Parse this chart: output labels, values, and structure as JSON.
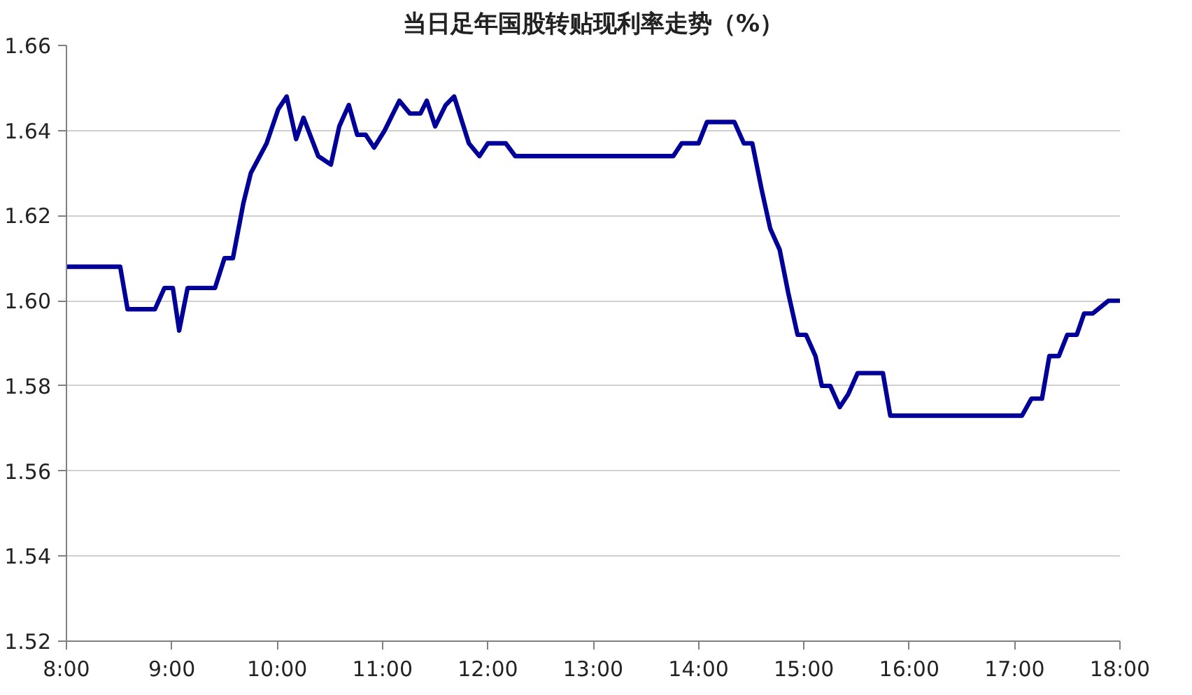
{
  "chart_data": {
    "type": "line",
    "title": "当日足年国股转贴现利率走势（%）",
    "x": [
      8.0,
      8.51,
      8.58,
      8.84,
      8.93,
      9.01,
      9.07,
      9.15,
      9.41,
      9.5,
      9.58,
      9.68,
      9.75,
      9.9,
      10.01,
      10.09,
      10.18,
      10.25,
      10.39,
      10.51,
      10.59,
      10.68,
      10.76,
      10.84,
      10.92,
      11.02,
      11.16,
      11.26,
      11.36,
      11.42,
      11.5,
      11.6,
      11.68,
      11.82,
      11.92,
      12.0,
      12.17,
      12.26,
      13.76,
      13.84,
      14.0,
      14.08,
      14.34,
      14.43,
      14.51,
      14.6,
      14.68,
      14.77,
      14.85,
      14.94,
      15.02,
      15.11,
      15.17,
      15.25,
      15.34,
      15.42,
      15.51,
      15.75,
      15.82,
      17.07,
      17.16,
      17.26,
      17.33,
      17.42,
      17.5,
      17.59,
      17.66,
      17.74,
      17.89,
      18.0
    ],
    "series": [
      {
        "color": "#000099",
        "values": [
          1.608,
          1.608,
          1.598,
          1.598,
          1.603,
          1.603,
          1.593,
          1.603,
          1.603,
          1.61,
          1.61,
          1.623,
          1.63,
          1.637,
          1.645,
          1.648,
          1.638,
          1.643,
          1.634,
          1.632,
          1.641,
          1.646,
          1.639,
          1.639,
          1.636,
          1.64,
          1.647,
          1.644,
          1.644,
          1.647,
          1.641,
          1.646,
          1.648,
          1.637,
          1.634,
          1.637,
          1.637,
          1.634,
          1.634,
          1.637,
          1.637,
          1.642,
          1.642,
          1.637,
          1.637,
          1.626,
          1.617,
          1.612,
          1.602,
          1.592,
          1.592,
          1.587,
          1.58,
          1.58,
          1.575,
          1.578,
          1.583,
          1.583,
          1.573,
          1.573,
          1.577,
          1.577,
          1.587,
          1.587,
          1.592,
          1.592,
          1.597,
          1.597,
          1.6,
          1.6
        ]
      }
    ],
    "xlim": [
      8,
      18
    ],
    "xticks": [
      {
        "value": 8,
        "label": "8:00"
      },
      {
        "value": 9,
        "label": "9:00"
      },
      {
        "value": 10,
        "label": "10:00"
      },
      {
        "value": 11,
        "label": "11:00"
      },
      {
        "value": 12,
        "label": "12:00"
      },
      {
        "value": 13,
        "label": "13:00"
      },
      {
        "value": 14,
        "label": "14:00"
      },
      {
        "value": 15,
        "label": "15:00"
      },
      {
        "value": 16,
        "label": "16:00"
      },
      {
        "value": 17,
        "label": "17:00"
      },
      {
        "value": 18,
        "label": "18:00"
      }
    ],
    "ylim": [
      1.52,
      1.66
    ],
    "yticks": [
      {
        "value": 1.52,
        "label": "1.52"
      },
      {
        "value": 1.54,
        "label": "1.54"
      },
      {
        "value": 1.56,
        "label": "1.56"
      },
      {
        "value": 1.58,
        "label": "1.58"
      },
      {
        "value": 1.6,
        "label": "1.60"
      },
      {
        "value": 1.62,
        "label": "1.62"
      },
      {
        "value": 1.64,
        "label": "1.64"
      },
      {
        "value": 1.66,
        "label": "1.66"
      }
    ],
    "grid": "y",
    "line_style": "solid"
  }
}
